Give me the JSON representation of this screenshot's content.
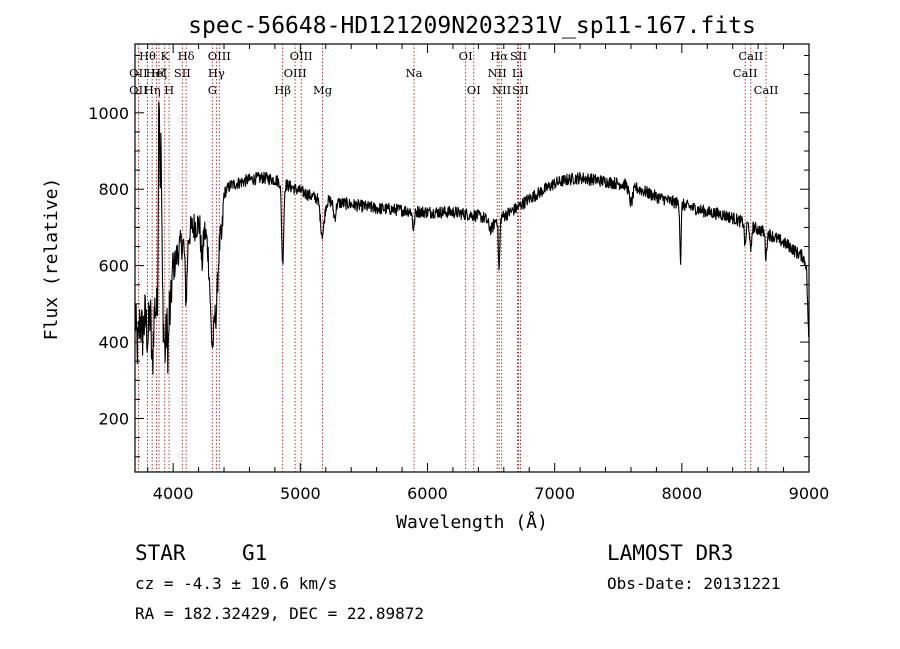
{
  "chart_data": {
    "type": "line",
    "title": "spec-56648-HD121209N203231V_sp11-167.fits",
    "xlabel": "Wavelength (Å)",
    "ylabel": "Flux (relative)",
    "xlim": [
      3700,
      9000
    ],
    "ylim": [
      60,
      1180
    ],
    "xticks": [
      4000,
      5000,
      6000,
      7000,
      8000,
      9000
    ],
    "yticks": [
      200,
      400,
      600,
      800,
      1000
    ],
    "series": [
      {
        "name": "spectrum",
        "anchors": [
          [
            3700,
            470
          ],
          [
            3720,
            380
          ],
          [
            3740,
            460
          ],
          [
            3760,
            420
          ],
          [
            3780,
            470
          ],
          [
            3800,
            410
          ],
          [
            3820,
            480
          ],
          [
            3840,
            440
          ],
          [
            3860,
            500
          ],
          [
            3880,
            450
          ],
          [
            3890,
            520
          ],
          [
            3900,
            470
          ],
          [
            3915,
            540
          ],
          [
            3930,
            580
          ],
          [
            3950,
            520
          ],
          [
            3968,
            410
          ],
          [
            3985,
            560
          ],
          [
            4000,
            590
          ],
          [
            4050,
            650
          ],
          [
            4100,
            665
          ],
          [
            4150,
            700
          ],
          [
            4200,
            710
          ],
          [
            4250,
            690
          ],
          [
            4300,
            610
          ],
          [
            4340,
            570
          ],
          [
            4400,
            790
          ],
          [
            4450,
            810
          ],
          [
            4500,
            815
          ],
          [
            4600,
            825
          ],
          [
            4700,
            830
          ],
          [
            4800,
            825
          ],
          [
            4900,
            810
          ],
          [
            5000,
            795
          ],
          [
            5100,
            780
          ],
          [
            5200,
            770
          ],
          [
            5400,
            760
          ],
          [
            5600,
            750
          ],
          [
            5800,
            745
          ],
          [
            6000,
            740
          ],
          [
            6200,
            740
          ],
          [
            6300,
            735
          ],
          [
            6400,
            730
          ],
          [
            6500,
            720
          ],
          [
            6600,
            730
          ],
          [
            6700,
            750
          ],
          [
            6800,
            775
          ],
          [
            6900,
            795
          ],
          [
            7000,
            815
          ],
          [
            7100,
            825
          ],
          [
            7200,
            830
          ],
          [
            7300,
            825
          ],
          [
            7400,
            820
          ],
          [
            7500,
            815
          ],
          [
            7600,
            810
          ],
          [
            7700,
            795
          ],
          [
            7800,
            780
          ],
          [
            7900,
            770
          ],
          [
            8000,
            760
          ],
          [
            8100,
            750
          ],
          [
            8200,
            740
          ],
          [
            8300,
            735
          ],
          [
            8400,
            725
          ],
          [
            8500,
            710
          ],
          [
            8600,
            695
          ],
          [
            8700,
            680
          ],
          [
            8800,
            660
          ],
          [
            8850,
            650
          ],
          [
            8900,
            635
          ],
          [
            8950,
            625
          ],
          [
            8980,
            600
          ],
          [
            9000,
            380
          ]
        ],
        "features": [
          [
            3934,
            -190,
            10
          ],
          [
            3968,
            -140,
            10
          ],
          [
            3889,
            580,
            6
          ],
          [
            3905,
            400,
            5
          ],
          [
            3835,
            -120,
            6
          ],
          [
            3970,
            200,
            5
          ],
          [
            4102,
            -150,
            8
          ],
          [
            4227,
            -90,
            8
          ],
          [
            4308,
            -210,
            15
          ],
          [
            4340,
            -70,
            10
          ],
          [
            4383,
            -50,
            8
          ],
          [
            4861,
            -210,
            8
          ],
          [
            5173,
            -90,
            15
          ],
          [
            5270,
            -40,
            10
          ],
          [
            5890,
            -45,
            8
          ],
          [
            6563,
            -140,
            6
          ],
          [
            6500,
            -25,
            20
          ],
          [
            7600,
            -45,
            15
          ],
          [
            7990,
            -150,
            5
          ],
          [
            8498,
            -60,
            6
          ],
          [
            8542,
            -75,
            6
          ],
          [
            8662,
            -65,
            6
          ]
        ]
      }
    ],
    "lines": [
      {
        "x": 3727,
        "labels": [
          {
            "t": "OII",
            "row": 1
          },
          {
            "t": "OII",
            "row": 2
          }
        ]
      },
      {
        "x": 3798,
        "labels": [
          {
            "t": "Hθ",
            "row": 0
          }
        ]
      },
      {
        "x": 3835,
        "labels": [
          {
            "t": "Hη",
            "row": 2
          }
        ]
      },
      {
        "x": 3869,
        "labels": [
          {
            "t": "HeI",
            "row": 1
          }
        ]
      },
      {
        "x": 3889,
        "labels": [
          {
            "t": "Hζ",
            "row": 1
          }
        ]
      },
      {
        "x": 3934,
        "labels": [
          {
            "t": "K",
            "row": 0
          }
        ]
      },
      {
        "x": 3968,
        "labels": [
          {
            "t": "H",
            "row": 2
          }
        ]
      },
      {
        "x": 4072,
        "labels": [
          {
            "t": "SII",
            "row": 1
          }
        ]
      },
      {
        "x": 4102,
        "labels": [
          {
            "t": "Hδ",
            "row": 0
          }
        ]
      },
      {
        "x": 4308,
        "labels": [
          {
            "t": "G",
            "row": 2
          }
        ]
      },
      {
        "x": 4340,
        "labels": [
          {
            "t": "Hγ",
            "row": 1
          }
        ]
      },
      {
        "x": 4363,
        "labels": [
          {
            "t": "OIII",
            "row": 0
          }
        ]
      },
      {
        "x": 4861,
        "labels": [
          {
            "t": "Hβ",
            "row": 2
          }
        ]
      },
      {
        "x": 4959,
        "labels": [
          {
            "t": "OIII",
            "row": 1
          }
        ]
      },
      {
        "x": 5007,
        "labels": [
          {
            "t": "OIII",
            "row": 0
          }
        ]
      },
      {
        "x": 5175,
        "labels": [
          {
            "t": "Mg",
            "row": 2
          }
        ]
      },
      {
        "x": 5894,
        "labels": [
          {
            "t": "Na",
            "row": 1
          }
        ]
      },
      {
        "x": 6300,
        "labels": [
          {
            "t": "OI",
            "row": 0
          }
        ]
      },
      {
        "x": 6364,
        "labels": [
          {
            "t": "OI",
            "row": 2
          }
        ]
      },
      {
        "x": 6548,
        "labels": [
          {
            "t": "NII",
            "row": 1
          }
        ]
      },
      {
        "x": 6563,
        "labels": [
          {
            "t": "Hα",
            "row": 0
          }
        ]
      },
      {
        "x": 6583,
        "labels": [
          {
            "t": "NII",
            "row": 2
          }
        ]
      },
      {
        "x": 6708,
        "labels": [
          {
            "t": "Li",
            "row": 1
          }
        ]
      },
      {
        "x": 6716,
        "labels": [
          {
            "t": "SII",
            "row": 0
          }
        ]
      },
      {
        "x": 6731,
        "labels": [
          {
            "t": "SII",
            "row": 2
          }
        ]
      },
      {
        "x": 8498,
        "labels": [
          {
            "t": "CaII",
            "row": 1
          }
        ]
      },
      {
        "x": 8542,
        "labels": [
          {
            "t": "CaII",
            "row": 0
          }
        ]
      },
      {
        "x": 8662,
        "labels": [
          {
            "t": "CaII",
            "row": 2
          }
        ]
      }
    ],
    "annotations": {
      "class": "STAR",
      "subclass": "G1",
      "survey": "LAMOST DR3",
      "cz": "cz = -4.3 ± 10.6 km/s",
      "obs_date": "Obs-Date: 20131221",
      "radec": "RA = 182.32429, DEC =  22.89872"
    },
    "colors": {
      "spectrum": "#000000",
      "line_markers": "#b22222",
      "axes": "#000000"
    }
  }
}
